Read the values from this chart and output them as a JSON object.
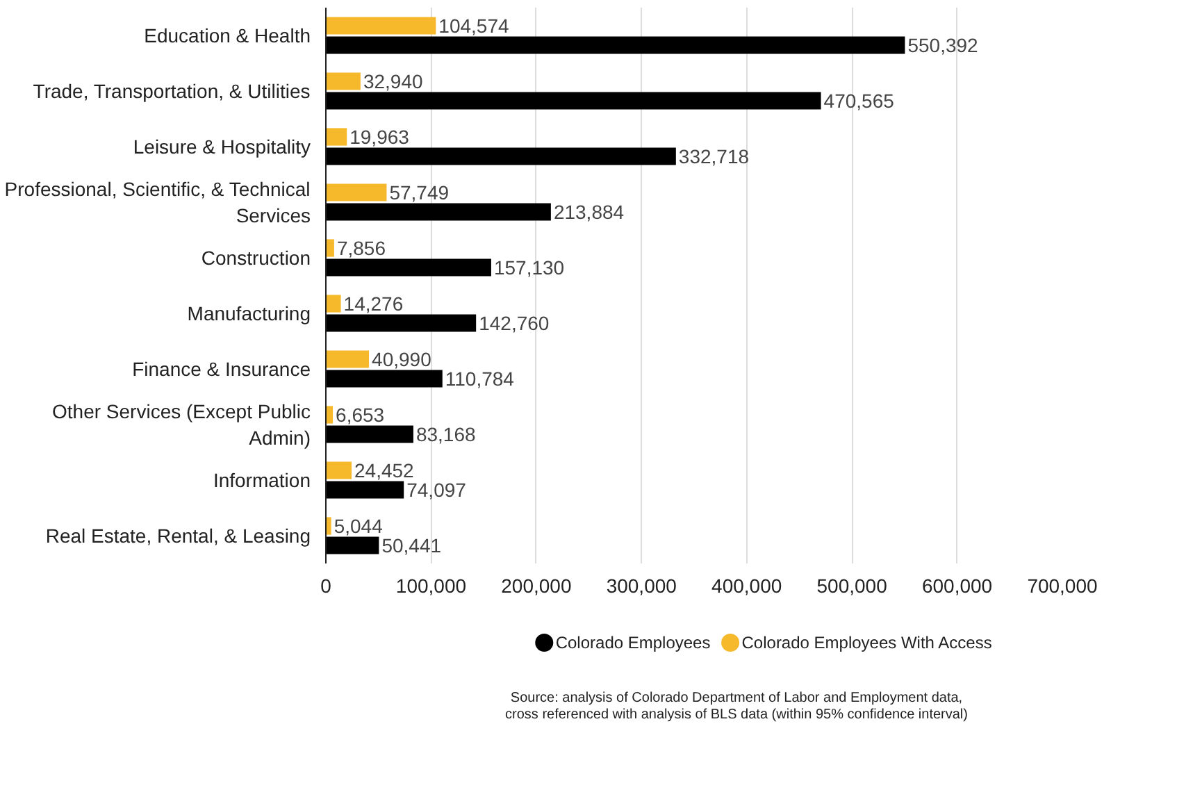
{
  "chart_data": {
    "type": "bar",
    "orientation": "horizontal",
    "categories": [
      "Education & Health",
      "Trade, Transportation, & Utilities",
      "Leisure & Hospitality",
      "Professional, Scientific, & Technical\nServices",
      "Construction",
      "Manufacturing",
      "Finance & Insurance",
      "Other Services (Except Public\nAdmin)",
      "Information",
      "Real Estate, Rental, & Leasing"
    ],
    "series": [
      {
        "name": "Colorado Employees",
        "color": "#000000",
        "values": [
          550392,
          470565,
          332718,
          213884,
          157130,
          142760,
          110784,
          83168,
          74097,
          50441
        ],
        "value_labels": [
          "550,392",
          "470,565",
          "332,718",
          "213,884",
          "157,130",
          "142,760",
          "110,784",
          "83,168",
          "74,097",
          "50,441"
        ]
      },
      {
        "name": "Colorado Employees With Access",
        "color": "#f6b92b",
        "values": [
          104574,
          32940,
          19963,
          57749,
          7856,
          14276,
          40990,
          6653,
          24452,
          5044
        ],
        "value_labels": [
          "104,574",
          "32,940",
          "19,963",
          "57,749",
          "7,856",
          "14,276",
          "40,990",
          "6,653",
          "24,452",
          "5,044"
        ]
      }
    ],
    "xlim": [
      0,
      700000
    ],
    "xticks": [
      {
        "value": 0,
        "label": "0"
      },
      {
        "value": 100000,
        "label": "100,000"
      },
      {
        "value": 200000,
        "label": "200,000"
      },
      {
        "value": 300000,
        "label": "300,000"
      },
      {
        "value": 400000,
        "label": "400,000"
      },
      {
        "value": 500000,
        "label": "500,000"
      },
      {
        "value": 600000,
        "label": "600,000"
      },
      {
        "value": 700000,
        "label": "700,000"
      }
    ],
    "grid": "x",
    "legend": "bottom",
    "data_labels": true,
    "annotations": [
      "Source: analysis of Colorado Department of Labor and Employment data,",
      "cross referenced with analysis of BLS data (within 95% confidence interval)"
    ]
  }
}
